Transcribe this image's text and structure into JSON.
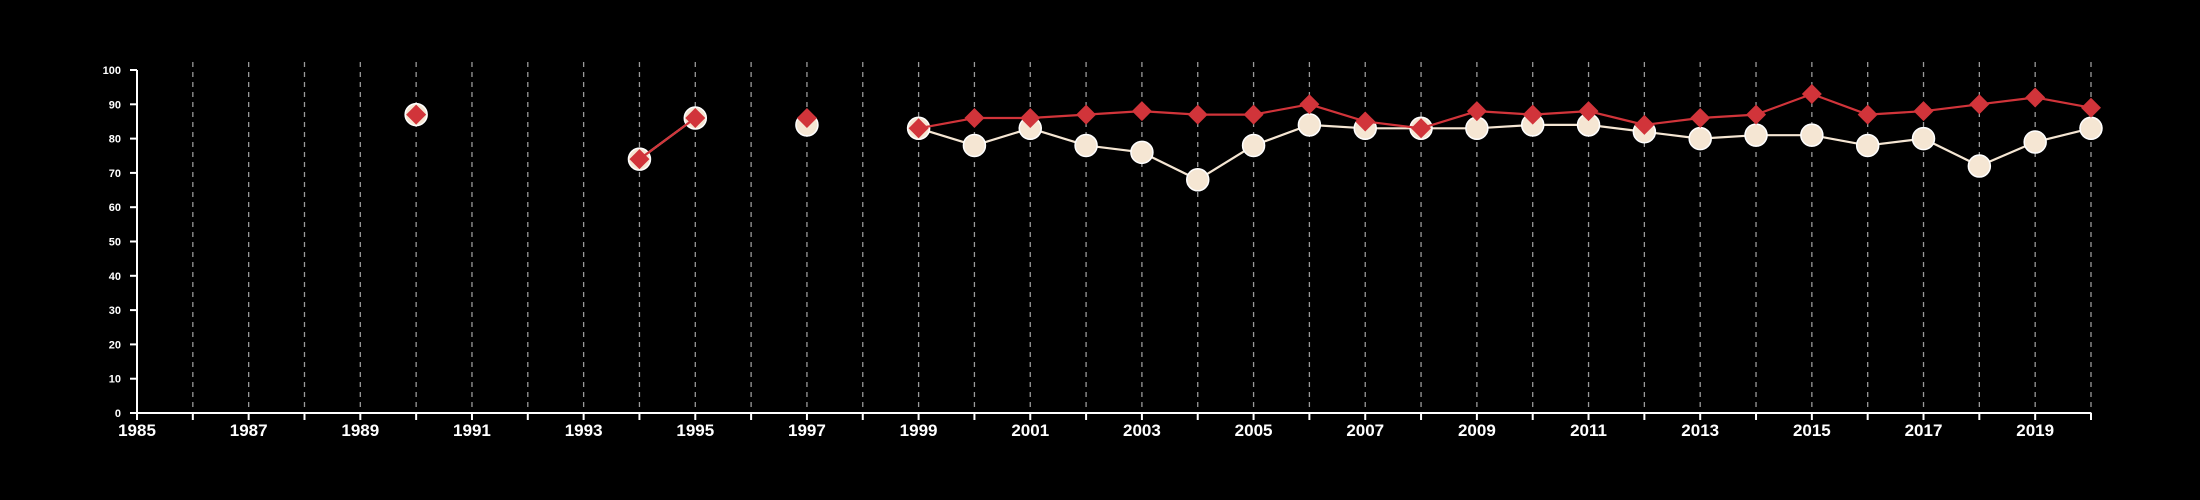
{
  "chart_data": {
    "type": "line",
    "title": "",
    "xlabel": "",
    "ylabel": "",
    "xlim": [
      1985,
      2020
    ],
    "ylim": [
      0,
      100
    ],
    "x_ticks": [
      "1985",
      "1987",
      "1989",
      "1991",
      "1993",
      "1995",
      "1997",
      "1999",
      "2001",
      "2003",
      "2005",
      "2007",
      "2009",
      "2011",
      "2013",
      "2015",
      "2017",
      "2019"
    ],
    "y_ticks": [
      "0",
      "10",
      "20",
      "30",
      "40",
      "50",
      "60",
      "70",
      "80",
      "90",
      "100"
    ],
    "grid": "vertical dashed lines at every year",
    "legend": "none",
    "series": [
      {
        "marker": "circle",
        "color": "#f5e6d3",
        "points": [
          [
            1990,
            87
          ],
          [
            1994,
            74
          ],
          [
            1995,
            86
          ],
          [
            1997,
            84
          ],
          [
            1999,
            83
          ],
          [
            2000,
            78
          ],
          [
            2001,
            83
          ],
          [
            2002,
            78
          ],
          [
            2003,
            76
          ],
          [
            2004,
            68
          ],
          [
            2005,
            78
          ],
          [
            2006,
            84
          ],
          [
            2007,
            83
          ],
          [
            2008,
            83
          ],
          [
            2009,
            83
          ],
          [
            2010,
            84
          ],
          [
            2011,
            84
          ],
          [
            2012,
            82
          ],
          [
            2013,
            80
          ],
          [
            2014,
            81
          ],
          [
            2015,
            81
          ],
          [
            2016,
            78
          ],
          [
            2017,
            80
          ],
          [
            2018,
            72
          ],
          [
            2019,
            79
          ],
          [
            2020,
            83
          ]
        ]
      },
      {
        "marker": "diamond",
        "color": "#d1343a",
        "points": [
          [
            1990,
            87
          ],
          [
            1994,
            74
          ],
          [
            1995,
            86
          ],
          [
            1997,
            86
          ],
          [
            1999,
            83
          ],
          [
            2000,
            86
          ],
          [
            2001,
            86
          ],
          [
            2002,
            87
          ],
          [
            2003,
            88
          ],
          [
            2004,
            87
          ],
          [
            2005,
            87
          ],
          [
            2006,
            90
          ],
          [
            2007,
            85
          ],
          [
            2008,
            83
          ],
          [
            2009,
            88
          ],
          [
            2010,
            87
          ],
          [
            2011,
            88
          ],
          [
            2012,
            84
          ],
          [
            2013,
            86
          ],
          [
            2014,
            87
          ],
          [
            2015,
            93
          ],
          [
            2016,
            87
          ],
          [
            2017,
            88
          ],
          [
            2018,
            90
          ],
          [
            2019,
            92
          ],
          [
            2020,
            89
          ]
        ]
      }
    ]
  }
}
